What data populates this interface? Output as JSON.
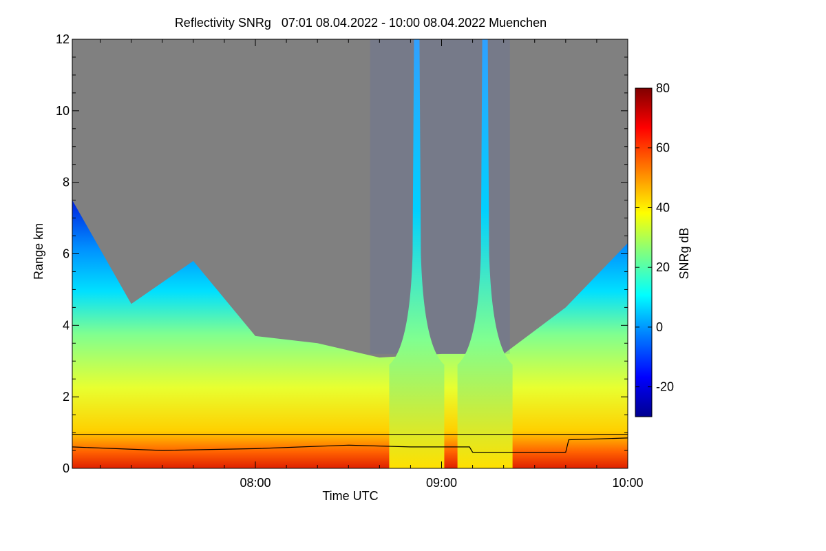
{
  "chart_data": {
    "type": "heatmap",
    "title": "Reflectivity SNRg   07:01 08.04.2022 - 10:00 08.04.2022 Muenchen",
    "xlabel": "Time UTC",
    "ylabel": "Range km",
    "xlim": [
      "07:01",
      "10:00"
    ],
    "ylim": [
      0,
      12
    ],
    "x_ticks": [
      "08:00",
      "09:00",
      "10:00"
    ],
    "y_ticks": [
      "0",
      "2",
      "4",
      "6",
      "8",
      "10",
      "12"
    ],
    "colorbar": {
      "label": "SNRg dB",
      "range": [
        -30,
        80
      ],
      "ticks": [
        "-20",
        "0",
        "20",
        "40",
        "60",
        "80"
      ],
      "colormap": [
        "#00008f",
        "#0000ff",
        "#0080ff",
        "#00ffff",
        "#80ff80",
        "#ffff00",
        "#ff8000",
        "#ff0000",
        "#800000"
      ]
    },
    "background_color": "#808080",
    "features": {
      "cloud_top_km": [
        {
          "time": "07:01",
          "km": 7.5
        },
        {
          "time": "07:20",
          "km": 4.6
        },
        {
          "time": "07:40",
          "km": 5.8
        },
        {
          "time": "08:00",
          "km": 3.7
        },
        {
          "time": "08:20",
          "km": 3.5
        },
        {
          "time": "08:40",
          "km": 3.1
        },
        {
          "time": "09:00",
          "km": 3.2
        },
        {
          "time": "09:20",
          "km": 3.2
        },
        {
          "time": "09:40",
          "km": 4.5
        },
        {
          "time": "10:00",
          "km": 6.3
        }
      ],
      "vertical_plumes": [
        "08:52",
        "09:14"
      ],
      "boundary_layer_line_km": [
        {
          "time": "07:01",
          "km": 0.6
        },
        {
          "time": "07:30",
          "km": 0.5
        },
        {
          "time": "08:00",
          "km": 0.55
        },
        {
          "time": "08:30",
          "km": 0.65
        },
        {
          "time": "08:50",
          "km": 0.6
        },
        {
          "time": "09:09",
          "km": 0.6
        },
        {
          "time": "09:10",
          "km": 0.45
        },
        {
          "time": "09:40",
          "km": 0.45
        },
        {
          "time": "09:41",
          "km": 0.8
        },
        {
          "time": "10:00",
          "km": 0.85
        }
      ],
      "reference_line_km": 0.95
    }
  }
}
